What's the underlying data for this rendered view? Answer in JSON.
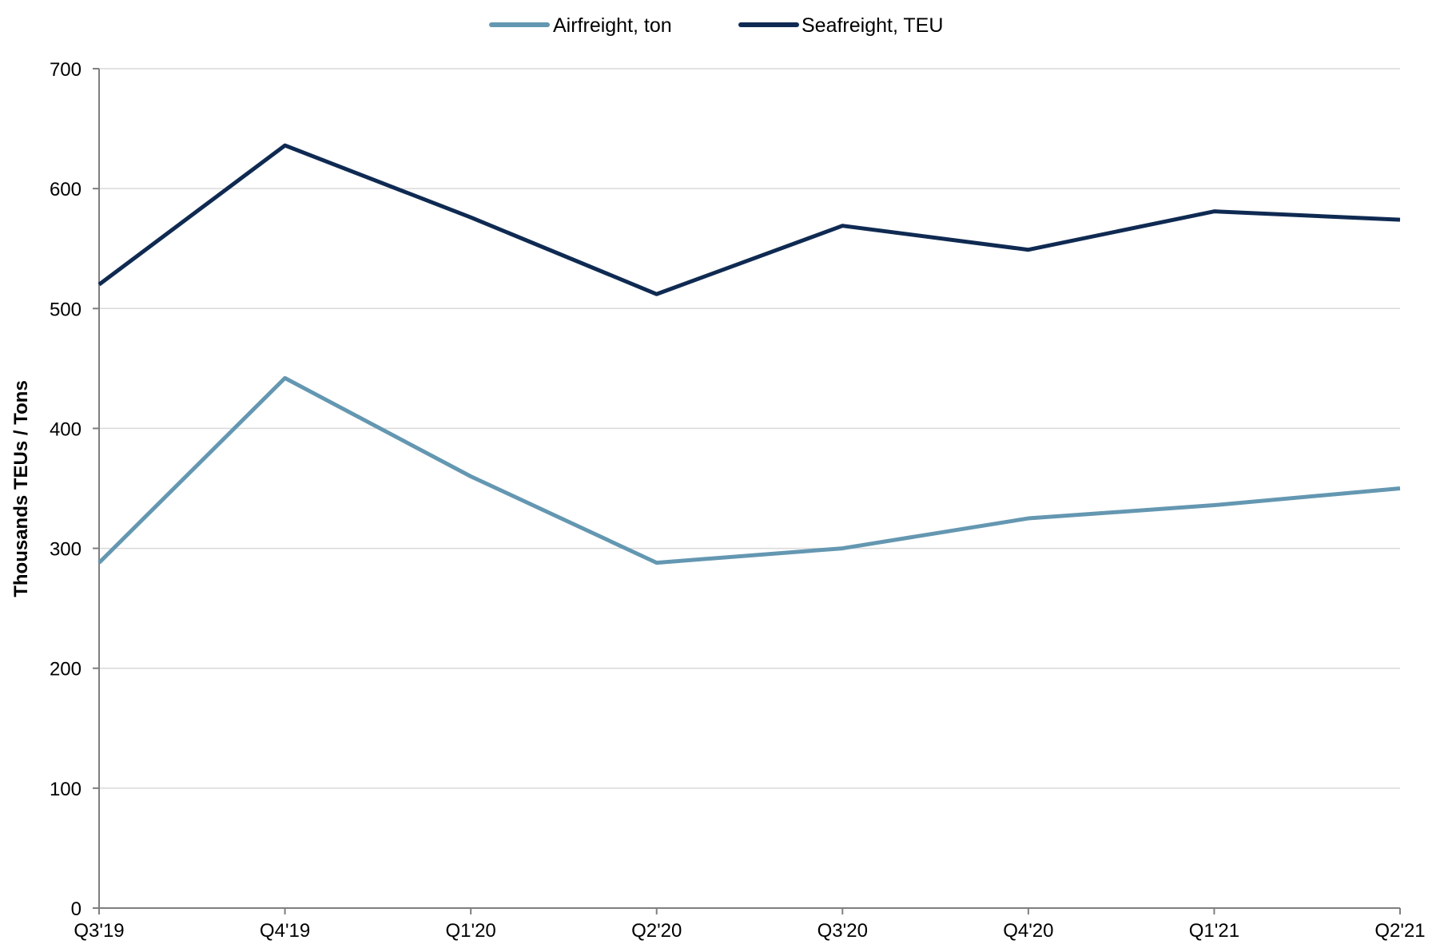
{
  "chart_data": {
    "type": "line",
    "categories": [
      "Q3'19",
      "Q4'19",
      "Q1'20",
      "Q2'20",
      "Q3'20",
      "Q4'20",
      "Q1'21",
      "Q2'21"
    ],
    "series": [
      {
        "name": "Airfreight, ton",
        "color": "#6497b1",
        "values": [
          288,
          442,
          360,
          288,
          300,
          325,
          336,
          350
        ]
      },
      {
        "name": "Seafreight, TEU",
        "color": "#0f2a52",
        "values": [
          520,
          636,
          576,
          512,
          569,
          549,
          581,
          574
        ]
      }
    ],
    "ylabel": "Thousands TEUs / Tons",
    "xlabel": "",
    "ylim": [
      0,
      700
    ],
    "yticks": [
      0,
      100,
      200,
      300,
      400,
      500,
      600,
      700
    ],
    "grid": true,
    "legend_position": "top-center"
  }
}
